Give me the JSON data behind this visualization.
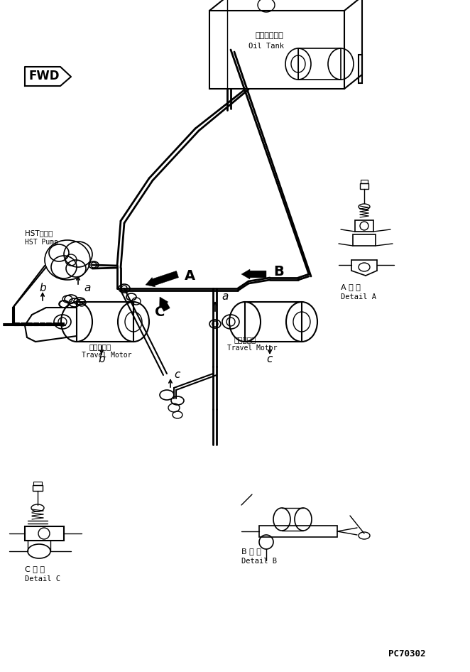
{
  "bg_color": "#ffffff",
  "line_color": "#000000",
  "title_text": "PC70302",
  "fwd_label": "FWD",
  "oil_tank_ja": "オイルタンク",
  "oil_tank_en": "Oil Tank",
  "hst_pump_ja": "HSTポンプ",
  "hst_pump_en": "HST Pump",
  "travel_motor_ja_1": "走行モータ",
  "travel_motor_en_1": "Travel Motor",
  "travel_motor_ja_2": "走行モータ",
  "travel_motor_en_2": "Travel Motor",
  "detail_a_ja": "A 詳 細",
  "detail_a_en": "Detail A",
  "detail_b_ja": "B 詳 細",
  "detail_b_en": "Detail B",
  "detail_c_ja": "C 詳 細",
  "detail_c_en": "Detail C",
  "label_A": "A",
  "label_B": "B",
  "label_C": "C",
  "label_a": "a",
  "label_b": "b",
  "label_c": "c"
}
